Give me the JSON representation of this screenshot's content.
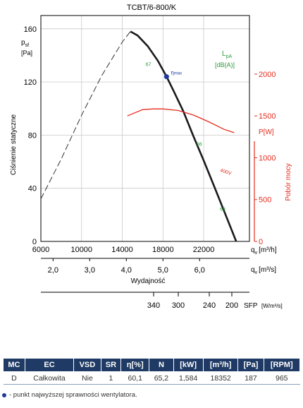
{
  "chart_data": {
    "type": "line",
    "title": "TCBT/6-800/K",
    "ylabel_sym": "p",
    "ylabel_sub": "sf",
    "ylabel_unit": "[Pa]",
    "ylabel_rot": "Ciśnienie statyczne",
    "xlabel": "Wydajność",
    "ylim": [
      0,
      170
    ],
    "xlim": [
      6000,
      26500
    ],
    "yticks": [
      "0",
      "40",
      "80",
      "120",
      "160"
    ],
    "xticks": [
      "6000",
      "10000",
      "14000",
      "18000",
      "22000"
    ],
    "x2ticks": [
      "2,0",
      "3,0",
      "4,0",
      "5,0",
      "6,0"
    ],
    "x_unit_sym": "q",
    "x_unit_sub": "v",
    "x_unit_h": "[m³/h]",
    "x_unit_s": "[m³/s]",
    "power_label_unit": "P[W]",
    "power_ticks": [
      "0",
      "500",
      "1000",
      "1500",
      "2000"
    ],
    "power_rot": "Pobór mocy",
    "sfp_ticks": [
      "340",
      "300",
      "240",
      "200"
    ],
    "sfp_label": "SFP",
    "sfp_unit": "[W/m³/s]",
    "lpa_label": "L",
    "lpa_sub": "pA",
    "lpa_unit": "[dB(A)]",
    "eta_label": "η",
    "eta_sub": "max",
    "power_curve_label": "400V",
    "noise_labels": [
      "67",
      "66",
      "66"
    ],
    "series": [
      {
        "role": "stall",
        "x": [
          6000,
          8000,
          10000,
          12000,
          14000,
          14800
        ],
        "y": [
          32,
          62,
          95,
          125,
          150,
          158
        ]
      },
      {
        "role": "operating",
        "x": [
          14800,
          15500,
          16500,
          17500,
          18352,
          19000,
          20000,
          21000,
          22000,
          23000,
          24000,
          25200
        ],
        "y": [
          158,
          155,
          147,
          136,
          124,
          114,
          98,
          79,
          61,
          42,
          23,
          0
        ]
      },
      {
        "role": "power",
        "x": [
          14500,
          16000,
          17000,
          18000,
          19500,
          21000,
          22500,
          24000,
          25000
        ],
        "y": [
          1500,
          1575,
          1584,
          1584,
          1565,
          1510,
          1430,
          1340,
          1300
        ]
      }
    ],
    "eta_point": {
      "x": 18352,
      "y": 124
    },
    "power_ylim": [
      0,
      2700
    ]
  },
  "table": {
    "headers": [
      "MC",
      "EC",
      "VSD",
      "SR",
      "η[%]",
      "N",
      "[kW]",
      "[m³/h]",
      "[Pa]",
      "[RPM]"
    ],
    "row": [
      "D",
      "Całkowita",
      "Nie",
      "1",
      "60,1",
      "65,2",
      "1,584",
      "18352",
      "187",
      "965"
    ]
  },
  "footnote": "- punkt najwyższej sprawności wentylatora.",
  "colors": {
    "curve": "#1a1a1a",
    "power": "#e32d1f",
    "noise": "#2a9a3a",
    "eta": "#1f3a9c",
    "header": "#1f3a64"
  }
}
